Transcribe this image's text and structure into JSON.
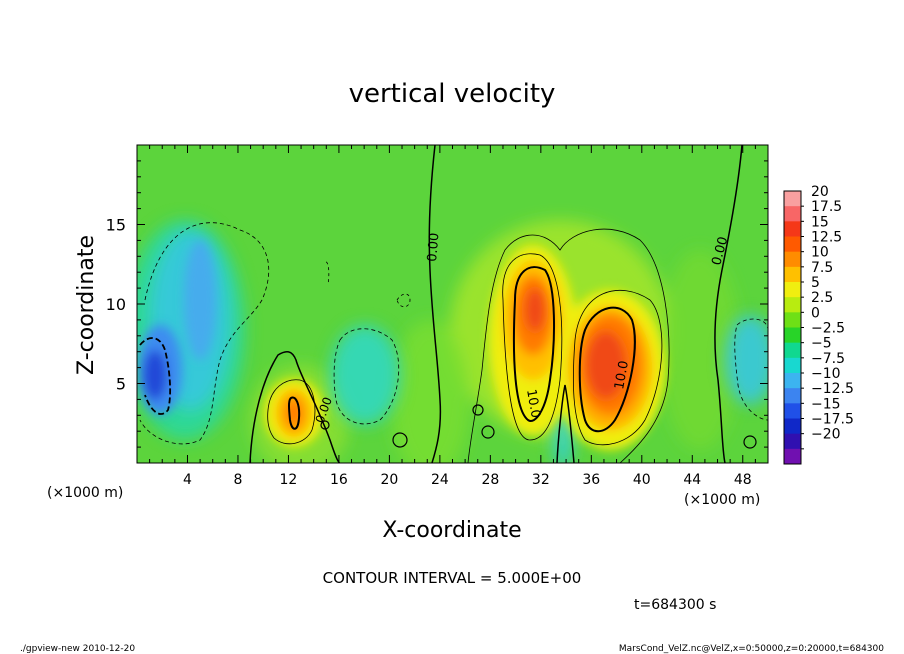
{
  "chart_data": {
    "type": "heatmap",
    "title": "vertical velocity",
    "xlabel": "X-coordinate",
    "ylabel": "Z-coordinate",
    "x_unit_label": "(×1000 m)",
    "xlim": [
      0,
      50
    ],
    "ylim": [
      0,
      20
    ],
    "x_ticks": [
      4,
      8,
      12,
      16,
      20,
      24,
      28,
      32,
      36,
      40,
      44,
      48
    ],
    "y_ticks": [
      5,
      10,
      15
    ],
    "colorbar": {
      "labels": [
        "20",
        "17.5",
        "15",
        "12.5",
        "10",
        "7.5",
        "5",
        "2.5",
        "0",
        "−2.5",
        "−5",
        "−7.5",
        "−10",
        "−12.5",
        "−15",
        "−17.5",
        "−20"
      ],
      "colors": [
        "#f9a0a0",
        "#f86666",
        "#f53818",
        "#ff5a00",
        "#ff8c00",
        "#ffc000",
        "#f0ee10",
        "#b8ec10",
        "#6ee016",
        "#28d428",
        "#10d890",
        "#18d8d0",
        "#3cb4f0",
        "#3c84f0",
        "#2050e8",
        "#1028c8",
        "#3010b0",
        "#7010b0"
      ]
    },
    "contour_labels": [
      "0.00",
      "0.00",
      "0.00",
      "10.0",
      "10.0"
    ],
    "contour_interval_text": "CONTOUR INTERVAL = 5.000E+00",
    "time_text": "t=684300 s"
  },
  "footer": {
    "left": "./gpview-new   2010-12-20",
    "right": "MarsCond_VelZ.nc@VelZ,x=0:50000,z=0:20000,t=684300"
  },
  "colors": {
    "background_field": "#58d43a",
    "plot_border": "#000000"
  }
}
